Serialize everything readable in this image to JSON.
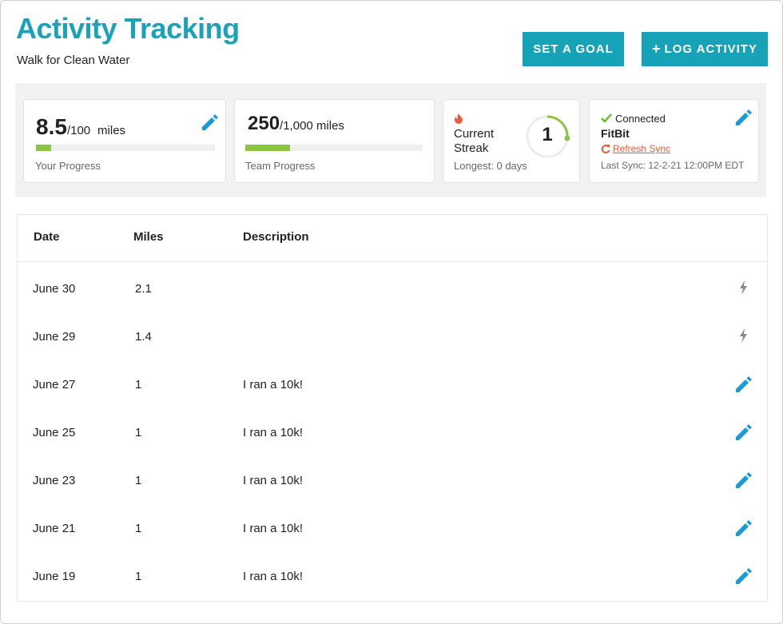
{
  "header": {
    "title": "Activity Tracking",
    "subtitle": "Walk for Clean Water"
  },
  "buttons": {
    "set_goal": "SET A GOAL",
    "log_activity": "LOG ACTIVITY"
  },
  "stats": {
    "your_progress": {
      "value": 8.5,
      "goal": {
        "value": 100,
        "label": "/100"
      },
      "unit": "miles",
      "label": "Your Progress"
    },
    "team_progress": {
      "value": 250,
      "goal": {
        "value": 1000,
        "label": "/1,000 miles"
      },
      "label": "Team Progress"
    },
    "streak": {
      "label": "Current Streak",
      "value": 1,
      "longest": "Longest: 0 days"
    },
    "device": {
      "status": "Connected",
      "name": "FitBit",
      "action": "Refresh Sync",
      "last_sync": "Last Sync: 12-2-21 12:00PM EDT"
    }
  },
  "table": {
    "columns": [
      "Date",
      "Miles",
      "Description"
    ],
    "rows": [
      {
        "date": "June 30",
        "miles": 2.1,
        "icon": "bolt"
      },
      {
        "date": "June 29",
        "miles": 1.4,
        "icon": "bolt"
      },
      {
        "date": "June 27",
        "miles": 1,
        "description": "I ran a 10k!",
        "icon": "pencil"
      },
      {
        "date": "June 25",
        "miles": 1,
        "description": "I ran a 10k!",
        "icon": "pencil"
      },
      {
        "date": "June 23",
        "miles": 1,
        "description": "I ran a 10k!",
        "icon": "pencil"
      },
      {
        "date": "June 21",
        "miles": 1,
        "description": "I ran a 10k!",
        "icon": "pencil"
      },
      {
        "date": "June 19",
        "miles": 1,
        "description": "I ran a 10k!",
        "icon": "pencil"
      }
    ]
  }
}
